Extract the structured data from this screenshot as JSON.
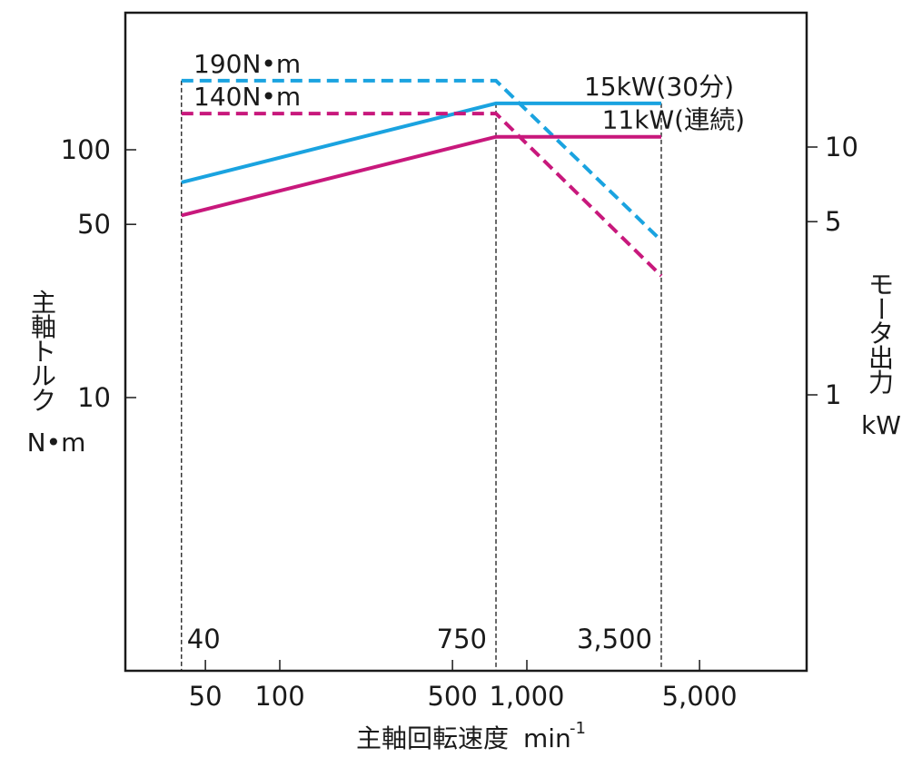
{
  "chart_data": {
    "type": "line",
    "x_scale": "log",
    "y_scale": "log",
    "xlabel": "主軸回転速度",
    "xlabel_unit": "min",
    "xlabel_unit_exp": "-1",
    "ylabel_left": [
      "主",
      "軸",
      "ト",
      "ル",
      "ク"
    ],
    "ylabel_left_unit": "N•m",
    "ylabel_right": [
      "モ",
      "ー",
      "タ",
      "出",
      "力"
    ],
    "ylabel_right_unit": "kW",
    "x_ticks": [
      {
        "value": 50,
        "label": "50"
      },
      {
        "value": 100,
        "label": "100"
      },
      {
        "value": 500,
        "label": "500"
      },
      {
        "value": 1000,
        "label": "1,000"
      },
      {
        "value": 5000,
        "label": "5,000"
      }
    ],
    "y_left_ticks": [
      {
        "value": 10,
        "label": "10"
      },
      {
        "value": 50,
        "label": "50"
      },
      {
        "value": 100,
        "label": "100"
      }
    ],
    "y_right_ticks": [
      {
        "value": 1,
        "label": "1"
      },
      {
        "value": 5,
        "label": "5"
      },
      {
        "value": 10,
        "label": "10"
      }
    ],
    "vlines": [
      {
        "x": 40,
        "label": "40"
      },
      {
        "x": 750,
        "label": "750"
      },
      {
        "x": 3500,
        "label": "3,500"
      }
    ],
    "series": [
      {
        "name": "15kW(30分)",
        "color": "#1aa3e0",
        "power": [
          {
            "x": 40,
            "y": 7.2
          },
          {
            "x": 750,
            "y": 15
          },
          {
            "x": 3500,
            "y": 15
          }
        ],
        "torque": [
          {
            "x": 40,
            "y": 190
          },
          {
            "x": 750,
            "y": 190
          },
          {
            "x": 3500,
            "y": 43
          }
        ],
        "torque_label": "190N•m"
      },
      {
        "name": "11kW(連続)",
        "color": "#c8187c",
        "power": [
          {
            "x": 40,
            "y": 5.3
          },
          {
            "x": 750,
            "y": 11
          },
          {
            "x": 3500,
            "y": 11
          }
        ],
        "torque": [
          {
            "x": 40,
            "y": 140
          },
          {
            "x": 750,
            "y": 140
          },
          {
            "x": 3500,
            "y": 31
          }
        ],
        "torque_label": "140N•m"
      }
    ]
  }
}
